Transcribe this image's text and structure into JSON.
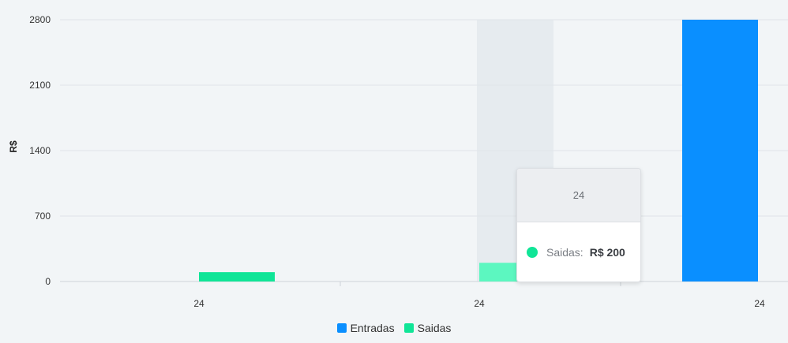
{
  "chart_data": {
    "type": "bar",
    "categories": [
      "24",
      "24",
      "24"
    ],
    "series": [
      {
        "name": "Entradas",
        "color": "#0a8fff",
        "values": [
          0,
          0,
          2800
        ]
      },
      {
        "name": "Saidas",
        "color": "#10e597",
        "values": [
          100,
          200,
          0
        ]
      }
    ],
    "xlabel": "",
    "ylabel": "R$",
    "ylim": [
      0,
      2800
    ],
    "yticks": [
      "0",
      "700",
      "1400",
      "2100",
      "2800"
    ],
    "grid": true,
    "legend_position": "bottom"
  },
  "tooltip": {
    "title": "24",
    "series_label": "Saidas:",
    "value": "R$ 200",
    "marker_color": "#10e597"
  },
  "hover_color": "#5cf7c0",
  "hover_band_color": "#e6ebef",
  "legend": [
    {
      "label": "Entradas",
      "color": "#0a8fff"
    },
    {
      "label": "Saidas",
      "color": "#10e597"
    }
  ]
}
